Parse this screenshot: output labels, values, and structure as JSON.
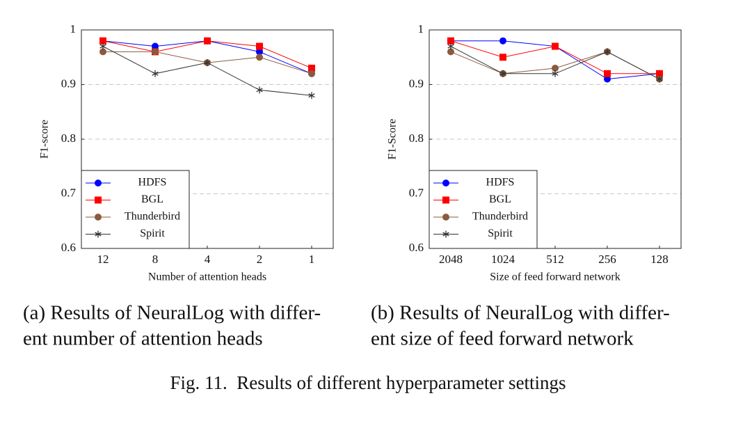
{
  "chart_data": [
    {
      "type": "line",
      "x_label": "Number of attention heads",
      "y_label": "F1-score",
      "categories": [
        "12",
        "8",
        "4",
        "2",
        "1"
      ],
      "series": [
        {
          "name": "HDFS",
          "color": "#0000ff",
          "marker": "circle",
          "values": [
            0.98,
            0.97,
            0.98,
            0.96,
            0.92
          ]
        },
        {
          "name": "BGL",
          "color": "#ff0000",
          "marker": "square",
          "values": [
            0.98,
            0.96,
            0.98,
            0.97,
            0.93
          ]
        },
        {
          "name": "Thunderbird",
          "color": "#8b5a3c",
          "marker": "circle",
          "values": [
            0.96,
            0.96,
            0.94,
            0.95,
            0.92
          ]
        },
        {
          "name": "Spirit",
          "color": "#333333",
          "marker": "star",
          "values": [
            0.97,
            0.92,
            0.94,
            0.89,
            0.88
          ]
        }
      ],
      "ylim": [
        0.6,
        1
      ],
      "yticks": [
        0.6,
        0.7,
        0.8,
        0.9,
        1
      ],
      "grid": true,
      "legend": "lower left",
      "caption": [
        "(a) Results of NeuralLog with differ-",
        "ent number of attention heads"
      ]
    },
    {
      "type": "line",
      "x_label": "Size of feed forward network",
      "y_label": "F1-Score",
      "categories": [
        "2048",
        "1024",
        "512",
        "256",
        "128"
      ],
      "series": [
        {
          "name": "HDFS",
          "color": "#0000ff",
          "marker": "circle",
          "values": [
            0.98,
            0.98,
            0.97,
            0.91,
            0.92
          ]
        },
        {
          "name": "BGL",
          "color": "#ff0000",
          "marker": "square",
          "values": [
            0.98,
            0.95,
            0.97,
            0.92,
            0.92
          ]
        },
        {
          "name": "Thunderbird",
          "color": "#8b5a3c",
          "marker": "circle",
          "values": [
            0.96,
            0.92,
            0.93,
            0.96,
            0.91
          ]
        },
        {
          "name": "Spirit",
          "color": "#333333",
          "marker": "star",
          "values": [
            0.97,
            0.92,
            0.92,
            0.96,
            0.91
          ]
        }
      ],
      "ylim": [
        0.6,
        1
      ],
      "yticks": [
        0.6,
        0.7,
        0.8,
        0.9,
        1
      ],
      "grid": true,
      "legend": "lower left",
      "caption": [
        "(b) Results of NeuralLog with differ-",
        "ent size of feed forward network"
      ]
    }
  ],
  "figure_caption": "Fig. 11.  Results of different hyperparameter settings"
}
